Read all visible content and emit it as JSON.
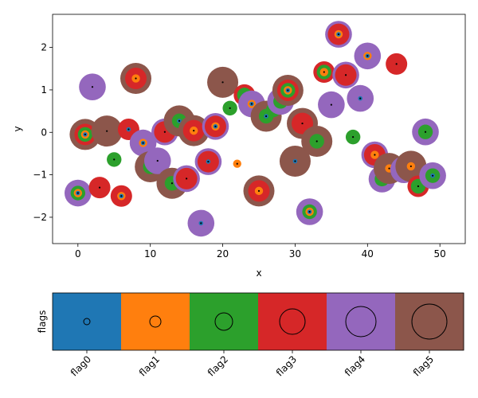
{
  "chart_data": [
    {
      "type": "scatter",
      "title": "",
      "xlabel": "x",
      "ylabel": "y",
      "xlim": [
        -3.5,
        53.5
      ],
      "ylim": [
        -2.62,
        2.78
      ],
      "xticks": [
        0,
        10,
        20,
        30,
        40,
        50
      ],
      "yticks": [
        -2,
        -1,
        0,
        1,
        2
      ],
      "grid": false,
      "marker_note": "each point is drawn as concentric rings for each set flag (flag5 outermost ... flag0 innermost) with a black center dot",
      "points": [
        {
          "x": 0,
          "y": -1.43,
          "flags": [
            0,
            1,
            2,
            4
          ]
        },
        {
          "x": 1,
          "y": -0.05,
          "flags": [
            0,
            1,
            2,
            3,
            5
          ]
        },
        {
          "x": 2,
          "y": 1.07,
          "flags": [
            4
          ]
        },
        {
          "x": 3,
          "y": -1.3,
          "flags": [
            3
          ]
        },
        {
          "x": 4,
          "y": 0.03,
          "flags": [
            5
          ]
        },
        {
          "x": 5,
          "y": -0.64,
          "flags": [
            2
          ]
        },
        {
          "x": 6,
          "y": -1.5,
          "flags": [
            0,
            1,
            3
          ]
        },
        {
          "x": 7,
          "y": 0.07,
          "flags": [
            0,
            3
          ]
        },
        {
          "x": 8,
          "y": 1.27,
          "flags": [
            1,
            3,
            5
          ]
        },
        {
          "x": 9,
          "y": -0.25,
          "flags": [
            0,
            1,
            4
          ]
        },
        {
          "x": 10,
          "y": -0.81,
          "flags": [
            2,
            5
          ]
        },
        {
          "x": 11,
          "y": -0.67,
          "flags": [
            4
          ]
        },
        {
          "x": 12,
          "y": 0.01,
          "flags": [
            3,
            4
          ]
        },
        {
          "x": 13,
          "y": -1.2,
          "flags": [
            2,
            5
          ]
        },
        {
          "x": 14,
          "y": 0.27,
          "flags": [
            0,
            2,
            5
          ]
        },
        {
          "x": 15,
          "y": -1.09,
          "flags": [
            3,
            4
          ]
        },
        {
          "x": 16,
          "y": 0.04,
          "flags": [
            1,
            3,
            5
          ]
        },
        {
          "x": 17,
          "y": -2.14,
          "flags": [
            0,
            4
          ]
        },
        {
          "x": 18,
          "y": -0.69,
          "flags": [
            0,
            3,
            4
          ]
        },
        {
          "x": 19,
          "y": 0.14,
          "flags": [
            0,
            1,
            3,
            4
          ]
        },
        {
          "x": 20,
          "y": 1.18,
          "flags": [
            5
          ]
        },
        {
          "x": 21,
          "y": 0.57,
          "flags": [
            2
          ]
        },
        {
          "x": 22,
          "y": -0.74,
          "flags": [
            1
          ]
        },
        {
          "x": 23,
          "y": 0.88,
          "flags": [
            0,
            2,
            3
          ]
        },
        {
          "x": 24,
          "y": 0.67,
          "flags": [
            0,
            1,
            4
          ]
        },
        {
          "x": 25,
          "y": -1.38,
          "flags": [
            1,
            3,
            5
          ]
        },
        {
          "x": 26,
          "y": 0.38,
          "flags": [
            0,
            2,
            5
          ]
        },
        {
          "x": 27,
          "y": 0.53,
          "flags": [
            0,
            2
          ]
        },
        {
          "x": 28,
          "y": 0.73,
          "flags": [
            2,
            4
          ]
        },
        {
          "x": 29,
          "y": 0.99,
          "flags": [
            0,
            1,
            2,
            3,
            5
          ]
        },
        {
          "x": 30,
          "y": -0.68,
          "flags": [
            0,
            5
          ]
        },
        {
          "x": 31,
          "y": 0.21,
          "flags": [
            3,
            5
          ]
        },
        {
          "x": 32,
          "y": -1.87,
          "flags": [
            0,
            1,
            2,
            4
          ]
        },
        {
          "x": 33,
          "y": -0.21,
          "flags": [
            2,
            5
          ]
        },
        {
          "x": 34,
          "y": 1.42,
          "flags": [
            1,
            2,
            3
          ]
        },
        {
          "x": 35,
          "y": 0.65,
          "flags": [
            4
          ]
        },
        {
          "x": 36,
          "y": 2.31,
          "flags": [
            0,
            1,
            3,
            4
          ]
        },
        {
          "x": 37,
          "y": 1.35,
          "flags": [
            3,
            4
          ]
        },
        {
          "x": 38,
          "y": -0.11,
          "flags": [
            2
          ]
        },
        {
          "x": 39,
          "y": 0.8,
          "flags": [
            0,
            4
          ]
        },
        {
          "x": 40,
          "y": 1.8,
          "flags": [
            0,
            1,
            4
          ]
        },
        {
          "x": 41,
          "y": -0.53,
          "flags": [
            1,
            3,
            4
          ]
        },
        {
          "x": 42,
          "y": -1.1,
          "flags": [
            0,
            2,
            4
          ]
        },
        {
          "x": 43,
          "y": -0.85,
          "flags": [
            1,
            5
          ]
        },
        {
          "x": 44,
          "y": 1.61,
          "flags": [
            3
          ]
        },
        {
          "x": 45,
          "y": -0.88,
          "flags": [
            0,
            1,
            4
          ]
        },
        {
          "x": 46,
          "y": -0.8,
          "flags": [
            1,
            5
          ]
        },
        {
          "x": 47,
          "y": -1.27,
          "flags": [
            2,
            3
          ]
        },
        {
          "x": 48,
          "y": 0.01,
          "flags": [
            2,
            4
          ]
        },
        {
          "x": 49,
          "y": -1.02,
          "flags": [
            0,
            2,
            4
          ]
        }
      ]
    },
    {
      "type": "heatmap",
      "title": "",
      "xlabel": "",
      "ylabel": "flags",
      "categories": [
        "flag0",
        "flag1",
        "flag2",
        "flag3",
        "flag4",
        "flag5"
      ],
      "colors": [
        "#1f77b4",
        "#ff7f0e",
        "#2ca02c",
        "#d62728",
        "#9467bd",
        "#8c564b"
      ],
      "marker_size_rank": [
        0,
        1,
        2,
        3,
        4,
        5
      ],
      "xtick_rotation": 45
    }
  ]
}
